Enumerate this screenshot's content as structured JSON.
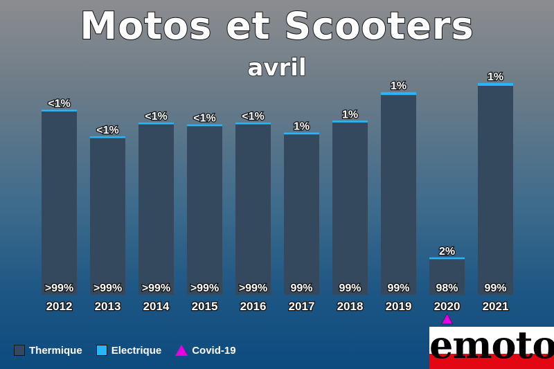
{
  "header": {
    "title": "Motos et Scooters",
    "subtitle": "avril"
  },
  "colors": {
    "thermique": "#34495e",
    "electrique": "#29b6f6",
    "covid": "#e600e6",
    "label_text": "#ffffff"
  },
  "chart_data": {
    "type": "bar",
    "stacked": true,
    "categories": [
      "2012",
      "2013",
      "2014",
      "2015",
      "2016",
      "2017",
      "2018",
      "2019",
      "2020",
      "2021"
    ],
    "series": [
      {
        "name": "Thermique",
        "values": [
          100,
          85.5,
          93,
          92,
          93,
          87.5,
          94,
          109,
          19.5,
          114
        ],
        "labels": [
          ">99%",
          ">99%",
          ">99%",
          ">99%",
          ">99%",
          "99%",
          "99%",
          "99%",
          "98%",
          "99%"
        ]
      },
      {
        "name": "Electrique",
        "values": [
          0.5,
          0.5,
          0.5,
          0.5,
          0.5,
          1,
          1,
          1.5,
          0.5,
          1.5
        ],
        "labels": [
          "<1%",
          "<1%",
          "<1%",
          "<1%",
          "<1%",
          "1%",
          "1%",
          "1%",
          "2%",
          "1%"
        ]
      }
    ],
    "markers": [
      {
        "category": "2020",
        "label": "Covid-19",
        "symbol": "triangle"
      }
    ],
    "ylim": [
      0,
      130
    ],
    "grid": false,
    "legend_position": "bottom-left"
  },
  "legend": {
    "items": [
      {
        "label": "Thermique"
      },
      {
        "label": "Electrique"
      },
      {
        "label": "Covid-19"
      }
    ]
  },
  "logo": {
    "text": "emoto"
  }
}
